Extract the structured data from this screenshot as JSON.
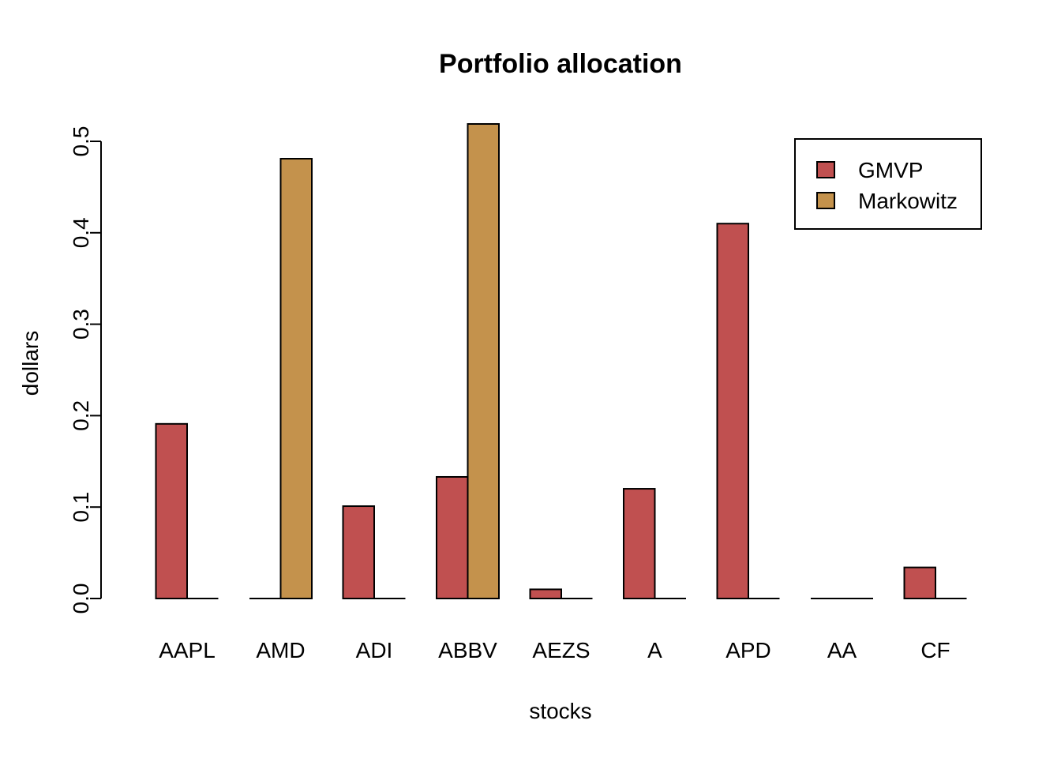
{
  "chart_data": {
    "type": "bar",
    "title": "Portfolio allocation",
    "xlabel": "stocks",
    "ylabel": "dollars",
    "categories": [
      "AAPL",
      "AMD",
      "ADI",
      "ABBV",
      "AEZS",
      "A",
      "APD",
      "AA",
      "CF"
    ],
    "series": [
      {
        "name": "GMVP",
        "color": "#c05050",
        "values": [
          0.191,
          0.0,
          0.101,
          0.133,
          0.01,
          0.12,
          0.41,
          0.0,
          0.034
        ]
      },
      {
        "name": "Markowitz",
        "color": "#c4924c",
        "values": [
          0.0,
          0.481,
          0.0,
          0.519,
          0.0,
          0.0,
          0.0,
          0.0,
          0.0
        ]
      }
    ],
    "ylim": [
      0,
      0.5
    ],
    "yticks": [
      "0.0",
      "0.1",
      "0.2",
      "0.3",
      "0.4",
      "0.5"
    ],
    "legend_position": "top-right",
    "grid": false
  }
}
